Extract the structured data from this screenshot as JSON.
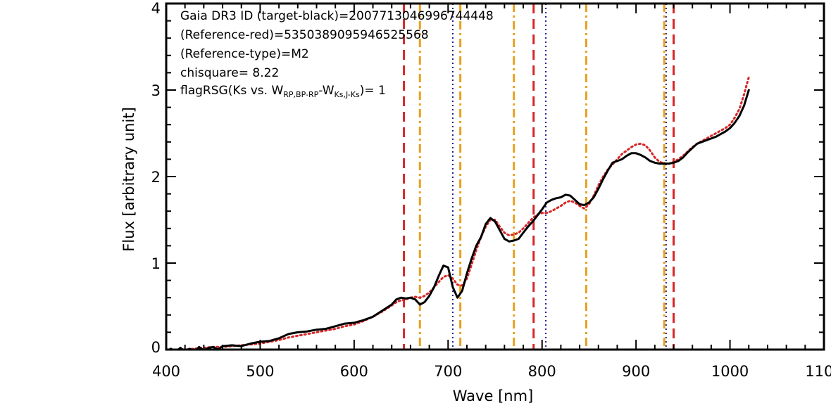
{
  "chart_data": {
    "type": "line",
    "title": "",
    "xlabel": "Wave [nm]",
    "ylabel": "Flux [arbitrary unit]",
    "xlim": [
      400,
      1100
    ],
    "ylim": [
      0,
      4
    ],
    "x_ticks": [
      400,
      500,
      600,
      700,
      800,
      900,
      1000,
      1100
    ],
    "x_tick_labels": [
      "400",
      "500",
      "600",
      "700",
      "800",
      "900",
      "1000",
      "1100"
    ],
    "y_ticks": [
      0,
      1,
      2,
      3,
      4
    ],
    "y_tick_labels": [
      "0",
      "1",
      "2",
      "3",
      "4"
    ],
    "grid": false,
    "annotations": [
      "Gaia DR3 ID (target-black)=2007713046996744448",
      "(Reference-red)=5350389095946525568",
      "(Reference-type)=M2",
      "chisquare= 8.22"
    ],
    "flag_annotation": {
      "prefix": "flagRSG(Ks vs. W",
      "sub1": "RP,BP-RP",
      "mid": "-W",
      "sub2": "Ks,J-Ks",
      "suffix": ")= 1"
    },
    "series": [
      {
        "color": "#000000",
        "style": "solid",
        "x": [
          400,
          405,
          410,
          415,
          420,
          425,
          430,
          435,
          440,
          445,
          450,
          455,
          460,
          470,
          480,
          490,
          500,
          510,
          520,
          530,
          540,
          550,
          560,
          570,
          580,
          590,
          600,
          610,
          620,
          630,
          640,
          645,
          650,
          655,
          660,
          665,
          670,
          675,
          680,
          685,
          690,
          695,
          700,
          705,
          710,
          715,
          720,
          725,
          730,
          735,
          740,
          745,
          750,
          755,
          760,
          765,
          770,
          775,
          780,
          785,
          790,
          795,
          800,
          805,
          810,
          815,
          820,
          825,
          830,
          835,
          840,
          845,
          850,
          855,
          860,
          865,
          870,
          875,
          880,
          885,
          890,
          895,
          900,
          905,
          910,
          915,
          920,
          925,
          930,
          935,
          940,
          945,
          950,
          955,
          960,
          965,
          970,
          975,
          980,
          985,
          990,
          995,
          1000,
          1005,
          1010,
          1015,
          1020
        ],
        "y": [
          -0.02,
          0.01,
          -0.03,
          0.02,
          -0.02,
          0.01,
          -0.03,
          0.03,
          -0.01,
          0.02,
          0.03,
          0.0,
          0.04,
          0.05,
          0.04,
          0.07,
          0.09,
          0.1,
          0.13,
          0.18,
          0.2,
          0.21,
          0.23,
          0.24,
          0.27,
          0.3,
          0.31,
          0.34,
          0.38,
          0.45,
          0.52,
          0.58,
          0.6,
          0.59,
          0.6,
          0.58,
          0.52,
          0.55,
          0.62,
          0.72,
          0.85,
          0.97,
          0.95,
          0.72,
          0.6,
          0.68,
          0.88,
          1.05,
          1.2,
          1.3,
          1.45,
          1.52,
          1.48,
          1.38,
          1.28,
          1.25,
          1.26,
          1.28,
          1.35,
          1.42,
          1.48,
          1.55,
          1.62,
          1.7,
          1.73,
          1.75,
          1.76,
          1.79,
          1.78,
          1.73,
          1.68,
          1.67,
          1.7,
          1.76,
          1.86,
          1.97,
          2.07,
          2.16,
          2.18,
          2.2,
          2.24,
          2.27,
          2.27,
          2.25,
          2.22,
          2.18,
          2.16,
          2.15,
          2.15,
          2.15,
          2.16,
          2.18,
          2.22,
          2.28,
          2.33,
          2.38,
          2.4,
          2.42,
          2.44,
          2.46,
          2.49,
          2.52,
          2.56,
          2.62,
          2.7,
          2.82,
          3.0
        ]
      },
      {
        "color": "#d62728",
        "style": "dotted",
        "x": [
          400,
          410,
          420,
          430,
          440,
          450,
          460,
          470,
          480,
          490,
          500,
          510,
          520,
          530,
          540,
          550,
          560,
          570,
          580,
          590,
          600,
          610,
          620,
          630,
          640,
          645,
          650,
          655,
          660,
          665,
          670,
          675,
          680,
          685,
          690,
          695,
          700,
          705,
          710,
          715,
          720,
          725,
          730,
          735,
          740,
          745,
          750,
          755,
          760,
          765,
          770,
          775,
          780,
          785,
          790,
          795,
          800,
          805,
          810,
          815,
          820,
          825,
          830,
          835,
          840,
          845,
          850,
          855,
          860,
          865,
          870,
          875,
          880,
          885,
          890,
          895,
          900,
          905,
          910,
          915,
          920,
          925,
          930,
          935,
          940,
          945,
          950,
          955,
          960,
          965,
          970,
          975,
          980,
          985,
          990,
          995,
          1000,
          1005,
          1010,
          1015,
          1020
        ],
        "y": [
          0.0,
          0.0,
          0.0,
          0.01,
          0.02,
          0.03,
          0.03,
          0.04,
          0.05,
          0.06,
          0.07,
          0.09,
          0.11,
          0.14,
          0.16,
          0.18,
          0.2,
          0.22,
          0.24,
          0.27,
          0.29,
          0.33,
          0.38,
          0.44,
          0.51,
          0.55,
          0.57,
          0.58,
          0.6,
          0.61,
          0.6,
          0.62,
          0.66,
          0.72,
          0.78,
          0.84,
          0.86,
          0.82,
          0.75,
          0.74,
          0.82,
          0.98,
          1.15,
          1.3,
          1.42,
          1.5,
          1.5,
          1.42,
          1.35,
          1.32,
          1.33,
          1.35,
          1.4,
          1.46,
          1.52,
          1.56,
          1.58,
          1.58,
          1.6,
          1.63,
          1.66,
          1.7,
          1.72,
          1.7,
          1.66,
          1.63,
          1.68,
          1.78,
          1.9,
          2.0,
          2.08,
          2.14,
          2.2,
          2.26,
          2.3,
          2.34,
          2.37,
          2.38,
          2.36,
          2.3,
          2.22,
          2.17,
          2.15,
          2.15,
          2.17,
          2.2,
          2.24,
          2.29,
          2.34,
          2.38,
          2.41,
          2.44,
          2.47,
          2.5,
          2.53,
          2.56,
          2.6,
          2.68,
          2.78,
          2.95,
          3.15
        ]
      }
    ],
    "vlines": [
      {
        "x": 653,
        "color": "#d62728",
        "style": "dashed"
      },
      {
        "x": 670,
        "color": "#e8a020",
        "style": "dashdot"
      },
      {
        "x": 705,
        "color": "#1f1f8f",
        "style": "dotted"
      },
      {
        "x": 713,
        "color": "#e8a020",
        "style": "dashdot"
      },
      {
        "x": 770,
        "color": "#e8a020",
        "style": "dashdot"
      },
      {
        "x": 791,
        "color": "#d62728",
        "style": "dashed"
      },
      {
        "x": 804,
        "color": "#1f1f8f",
        "style": "dotted"
      },
      {
        "x": 847,
        "color": "#e8a020",
        "style": "dashdot"
      },
      {
        "x": 930,
        "color": "#e8a020",
        "style": "dashdot"
      },
      {
        "x": 932,
        "color": "#1f1f8f",
        "style": "dotted"
      },
      {
        "x": 940,
        "color": "#d62728",
        "style": "dashed"
      }
    ]
  }
}
